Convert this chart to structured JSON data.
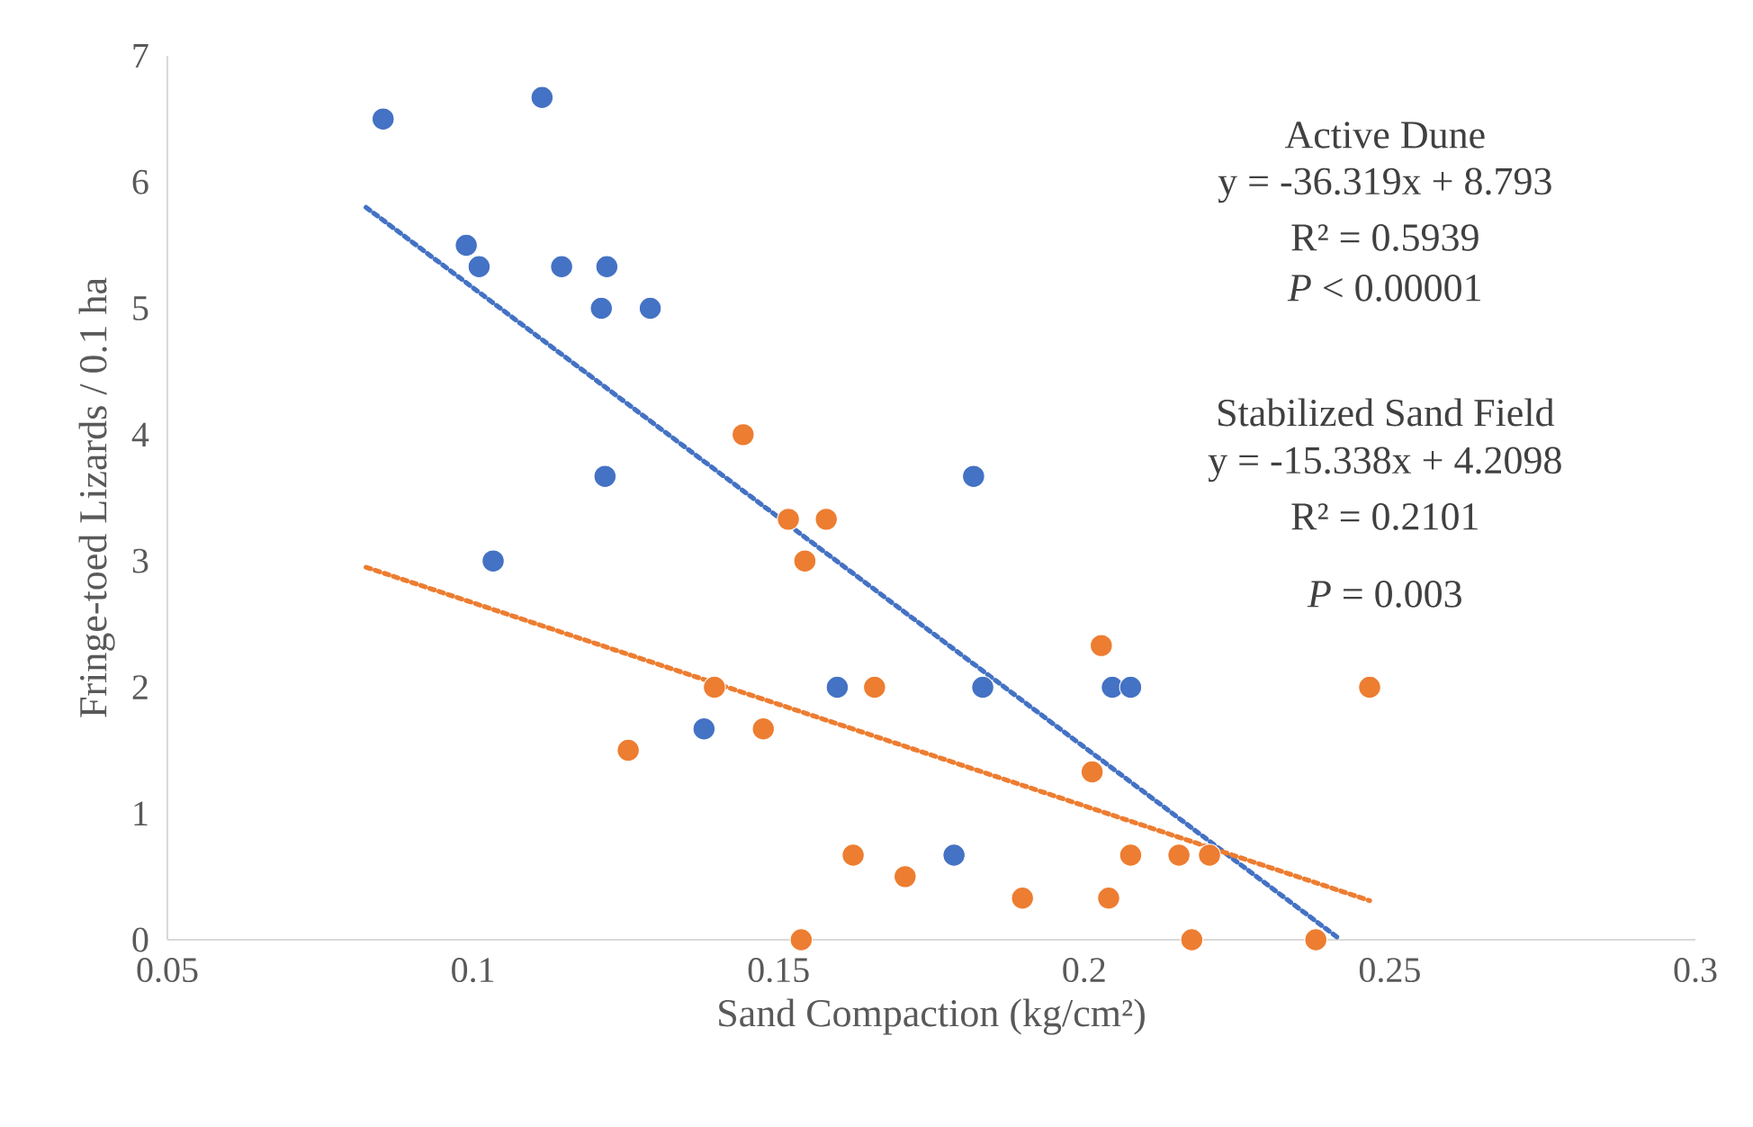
{
  "chart_data": {
    "type": "scatter",
    "xlabel": "Sand Compaction (kg/cm²)",
    "ylabel": "Fringe-toed Lizards  /  0.1 ha",
    "xlim": [
      0.05,
      0.3
    ],
    "ylim": [
      0,
      7
    ],
    "xticks": [
      0.05,
      0.1,
      0.15,
      0.2,
      0.25,
      0.3
    ],
    "yticks": [
      0,
      1,
      2,
      3,
      4,
      5,
      6,
      7
    ],
    "grid": false,
    "marker": "circle",
    "series": [
      {
        "color": "#4472c4",
        "x": [
          0.0853,
          0.1113,
          0.0989,
          0.101,
          0.1145,
          0.1219,
          0.121,
          0.129,
          0.1216,
          0.1033,
          0.1378,
          0.1596,
          0.1819,
          0.1834,
          0.2046,
          0.2076,
          0.1787
        ],
        "values": [
          6.5,
          6.67,
          5.5,
          5.33,
          5.33,
          5.33,
          5.0,
          5.0,
          3.67,
          3.0,
          1.67,
          2.0,
          3.67,
          2.0,
          2.0,
          2.0,
          0.67
        ]
      },
      {
        "color": "#ed7d31",
        "x": [
          0.1442,
          0.1516,
          0.1578,
          0.1543,
          0.1395,
          0.1254,
          0.1475,
          0.1657,
          0.2028,
          0.2013,
          0.1622,
          0.1707,
          0.1899,
          0.204,
          0.2076,
          0.2155,
          0.2205,
          0.1537,
          0.2176,
          0.2379,
          0.2467
        ],
        "values": [
          4.0,
          3.33,
          3.33,
          3.0,
          2.0,
          1.5,
          1.67,
          2.0,
          2.33,
          1.33,
          0.67,
          0.5,
          0.33,
          0.33,
          0.67,
          0.67,
          0.67,
          0,
          0,
          0,
          2.0
        ]
      },
      {
        "type": "line",
        "color": "#4472c4",
        "line_style": "dotted",
        "marker": "none",
        "x": [
          0.0825,
          0.2414
        ],
        "values": [
          5.8,
          0.02
        ]
      },
      {
        "type": "line",
        "color": "#ed7d31",
        "line_style": "dotted",
        "marker": "none",
        "x": [
          0.0825,
          0.2467
        ],
        "values": [
          2.95,
          0.31
        ]
      }
    ],
    "annotations": [
      "Active Dune",
      "y = -36.319x + 8.793",
      "R² = 0.5939",
      "*P* < 0.00001",
      "Stabilized Sand Field",
      "y = -15.338x + 4.2098",
      "R² = 0.2101",
      "*P* = 0.003"
    ]
  }
}
